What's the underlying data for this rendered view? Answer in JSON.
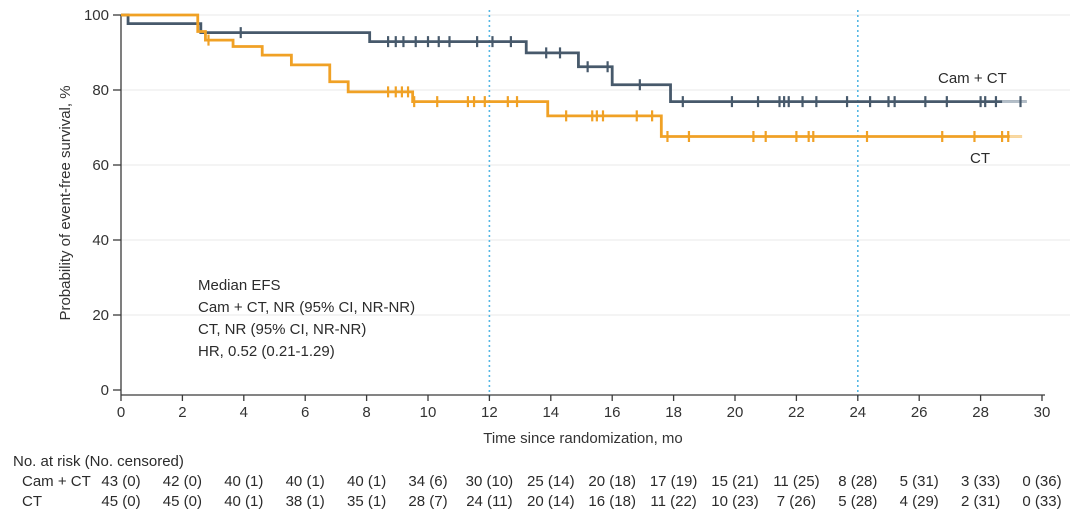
{
  "chart_data": {
    "type": "line",
    "subtype": "kaplan-meier-step",
    "title": "",
    "xlabel": "Time since randomization, mo",
    "ylabel": "Probability of event-free survival, %",
    "xlim": [
      0,
      30
    ],
    "ylim": [
      0,
      100
    ],
    "xticks": [
      0,
      2,
      4,
      6,
      8,
      10,
      12,
      14,
      16,
      18,
      20,
      22,
      24,
      26,
      28,
      30
    ],
    "yticks": [
      0,
      20,
      40,
      60,
      80,
      100
    ],
    "grid": "horizontal-light",
    "gridline_color": "#EAEAEA",
    "axis_color": "#3a3a3a",
    "reference_lines_x": [
      12,
      24
    ],
    "reference_line_color": "#55B7E4",
    "annotation": {
      "lines": [
        "Median EFS",
        "Cam + CT, NR (95% CI, NR-NR)",
        "CT, NR (95% CI, NR-NR)",
        "HR, 0.52 (0.21-1.29)"
      ]
    },
    "series": [
      {
        "name": "Cam + CT",
        "color": "#47596B",
        "fade_color": "#B3BEC8",
        "end_mo": 29.5,
        "fade_from_mo": 28.7,
        "steps": [
          [
            0,
            100
          ],
          [
            0.23,
            97.7
          ],
          [
            2.6,
            95.3
          ],
          [
            8.1,
            92.9
          ],
          [
            13.2,
            89.9
          ],
          [
            14.9,
            86.2
          ],
          [
            16.0,
            81.4
          ],
          [
            17.9,
            76.9
          ]
        ],
        "censors": [
          [
            3.9,
            95.3
          ],
          [
            8.7,
            92.9
          ],
          [
            8.95,
            92.9
          ],
          [
            9.2,
            92.9
          ],
          [
            9.6,
            92.9
          ],
          [
            10.0,
            92.9
          ],
          [
            10.35,
            92.9
          ],
          [
            10.7,
            92.9
          ],
          [
            11.6,
            92.9
          ],
          [
            12.1,
            92.9
          ],
          [
            12.7,
            92.9
          ],
          [
            13.85,
            89.9
          ],
          [
            14.3,
            89.9
          ],
          [
            15.2,
            86.2
          ],
          [
            15.85,
            86.2
          ],
          [
            16.9,
            81.4
          ],
          [
            18.3,
            76.9
          ],
          [
            19.9,
            76.9
          ],
          [
            20.75,
            76.9
          ],
          [
            21.45,
            76.9
          ],
          [
            21.6,
            76.9
          ],
          [
            21.75,
            76.9
          ],
          [
            22.2,
            76.9
          ],
          [
            22.65,
            76.9
          ],
          [
            23.65,
            76.9
          ],
          [
            24.4,
            76.9
          ],
          [
            25.0,
            76.9
          ],
          [
            25.2,
            76.9
          ],
          [
            26.2,
            76.9
          ],
          [
            26.9,
            76.9
          ],
          [
            28.0,
            76.9
          ],
          [
            28.15,
            76.9
          ],
          [
            28.5,
            76.9
          ],
          [
            29.3,
            76.9
          ]
        ]
      },
      {
        "name": "CT",
        "color": "#F0A125",
        "fade_color": "#F8D9A4",
        "end_mo": 29.35,
        "fade_from_mo": 28.95,
        "steps": [
          [
            0,
            100
          ],
          [
            2.5,
            95.6
          ],
          [
            2.75,
            93.3
          ],
          [
            3.65,
            91.6
          ],
          [
            4.6,
            89.3
          ],
          [
            5.55,
            86.7
          ],
          [
            6.8,
            82.2
          ],
          [
            7.4,
            79.5
          ],
          [
            9.5,
            76.9
          ],
          [
            13.9,
            73.1
          ],
          [
            17.6,
            67.6
          ]
        ],
        "censors": [
          [
            2.85,
            93.3
          ],
          [
            8.7,
            79.5
          ],
          [
            8.95,
            79.5
          ],
          [
            9.15,
            79.5
          ],
          [
            9.35,
            79.5
          ],
          [
            9.55,
            76.9
          ],
          [
            10.3,
            76.9
          ],
          [
            11.3,
            76.9
          ],
          [
            11.5,
            76.9
          ],
          [
            11.85,
            76.9
          ],
          [
            12.6,
            76.9
          ],
          [
            12.9,
            76.9
          ],
          [
            14.5,
            73.1
          ],
          [
            15.35,
            73.1
          ],
          [
            15.5,
            73.1
          ],
          [
            15.7,
            73.1
          ],
          [
            16.8,
            73.1
          ],
          [
            17.3,
            73.1
          ],
          [
            17.8,
            67.6
          ],
          [
            18.5,
            67.6
          ],
          [
            20.6,
            67.6
          ],
          [
            21.0,
            67.6
          ],
          [
            22.0,
            67.6
          ],
          [
            22.4,
            67.6
          ],
          [
            22.55,
            67.6
          ],
          [
            24.3,
            67.6
          ],
          [
            26.75,
            67.6
          ],
          [
            27.8,
            67.6
          ],
          [
            28.7,
            67.6
          ],
          [
            28.9,
            67.6
          ]
        ]
      }
    ]
  },
  "risk_table": {
    "title": "No. at risk (No. censored)",
    "times": [
      0,
      2,
      4,
      6,
      8,
      10,
      12,
      14,
      16,
      18,
      20,
      22,
      24,
      26,
      28,
      30
    ],
    "rows": [
      {
        "label": "Cam + CT",
        "values": [
          "43 (0)",
          "42 (0)",
          "40 (1)",
          "40 (1)",
          "40 (1)",
          "34 (6)",
          "30 (10)",
          "25 (14)",
          "20 (18)",
          "17 (19)",
          "15 (21)",
          "11 (25)",
          "8 (28)",
          "5 (31)",
          "3 (33)",
          "0 (36)"
        ]
      },
      {
        "label": "CT",
        "values": [
          "45 (0)",
          "45 (0)",
          "40 (1)",
          "38 (1)",
          "35 (1)",
          "28 (7)",
          "24 (11)",
          "20 (14)",
          "16 (18)",
          "11 (22)",
          "10 (23)",
          "7 (26)",
          "5 (28)",
          "4 (29)",
          "2 (31)",
          "0 (33)"
        ]
      }
    ]
  }
}
